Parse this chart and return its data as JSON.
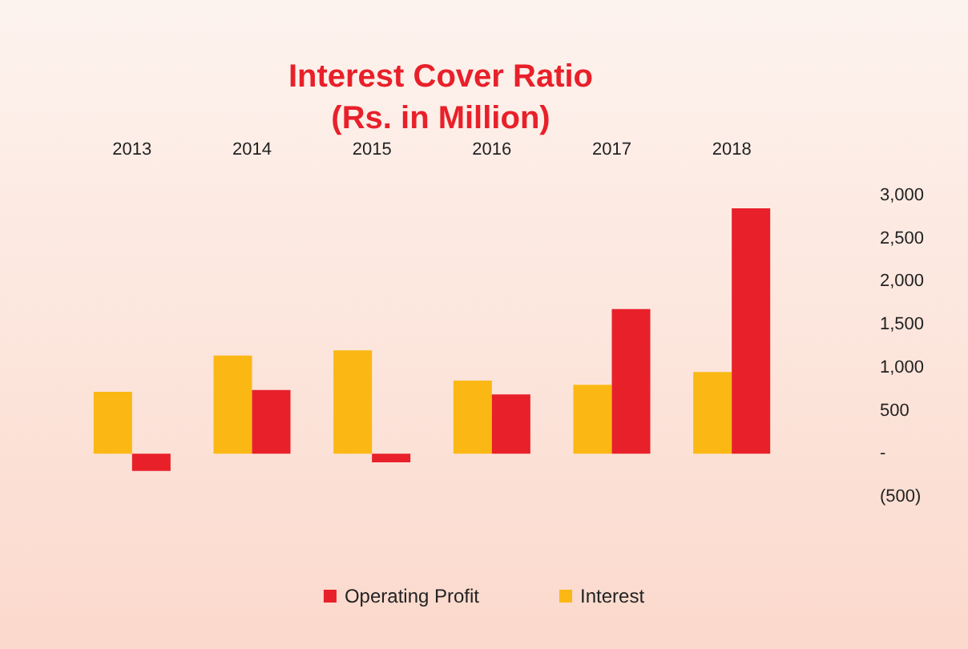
{
  "chart_data": {
    "type": "bar",
    "title": "Interest Cover Ratio\n(Rs. in Million)",
    "categories": [
      "2013",
      "2014",
      "2015",
      "2016",
      "2017",
      "2018"
    ],
    "series": [
      {
        "name": "Interest",
        "color": "#fbb814",
        "values": [
          720,
          1140,
          1200,
          850,
          800,
          950
        ]
      },
      {
        "name": "Operating Profit",
        "color": "#e8202a",
        "values": [
          -200,
          740,
          -100,
          690,
          1680,
          2850
        ]
      }
    ],
    "ylim": [
      -500,
      3000
    ],
    "yticks": [
      {
        "value": -500,
        "label": "(500)"
      },
      {
        "value": 0,
        "label": "-"
      },
      {
        "value": 500,
        "label": "500"
      },
      {
        "value": 1000,
        "label": "1,000"
      },
      {
        "value": 1500,
        "label": "1,500"
      },
      {
        "value": 2000,
        "label": "2,000"
      },
      {
        "value": 2500,
        "label": "2,500"
      },
      {
        "value": 3000,
        "label": "3,000"
      }
    ],
    "grid": false,
    "legend": "bottom"
  }
}
